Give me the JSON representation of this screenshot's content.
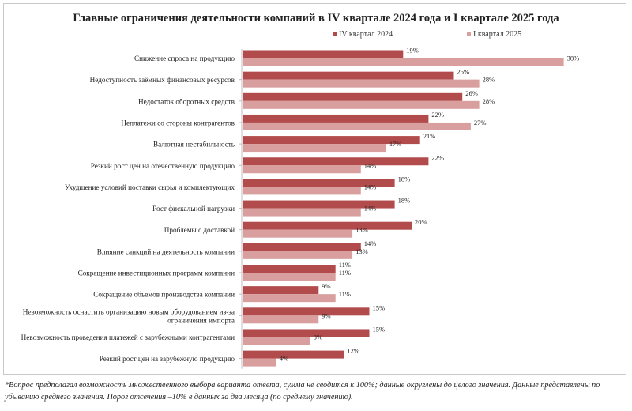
{
  "colors": {
    "series1": "#b24b4b",
    "series2": "#d99f9f",
    "axis": "#bfbfbf"
  },
  "note": "*Вопрос предполагал возможность множественного выбора варианта ответа, сумма не сводится к 100%; данные округлены до целого значения. Данные представлены по убыванию среднего значения. Порог отсечения –10% в данных за два месяца (по среднему значению).",
  "chart_data": {
    "type": "bar",
    "orientation": "horizontal",
    "title": "Главные ограничения деятельности компаний в IV квартале 2024 года и I квартале 2025 года",
    "legend_position": "top-right",
    "grid": false,
    "unit": "%",
    "xlim": [
      0,
      40
    ],
    "categories": [
      [
        "Снижение спроса на продукцию"
      ],
      [
        "Недоступность заёмных финансовых ресурсов"
      ],
      [
        "Недостаток оборотных средств"
      ],
      [
        "Неплатежи со стороны контрагентов"
      ],
      [
        "Валютная нестабильность"
      ],
      [
        "Резкий рост цен на отечественную продукцию"
      ],
      [
        "Ухудшение условий поставки сырья и комплектующих"
      ],
      [
        "Рост фискальной нагрузки"
      ],
      [
        "Проблемы с доставкой"
      ],
      [
        "Влияние санкций на деятельность компании"
      ],
      [
        "Сокращение инвестиционных программ компании"
      ],
      [
        "Сокращение объёмов производства компании"
      ],
      [
        "Невозможность оснастить организацию новым оборудованием из-за",
        "ограничения импорта"
      ],
      [
        "Невозможность проведения платежей с зарубежными контрагентами"
      ],
      [
        "Резкий рост цен на зарубежную продукцию"
      ]
    ],
    "series": [
      {
        "name": "IV квартал 2024",
        "values": [
          19,
          25,
          26,
          22,
          21,
          22,
          18,
          18,
          20,
          14,
          11,
          9,
          15,
          15,
          12
        ]
      },
      {
        "name": "I квартал 2025",
        "values": [
          38,
          28,
          28,
          27,
          17,
          14,
          14,
          14,
          13,
          13,
          11,
          11,
          9,
          8,
          4
        ]
      }
    ]
  }
}
